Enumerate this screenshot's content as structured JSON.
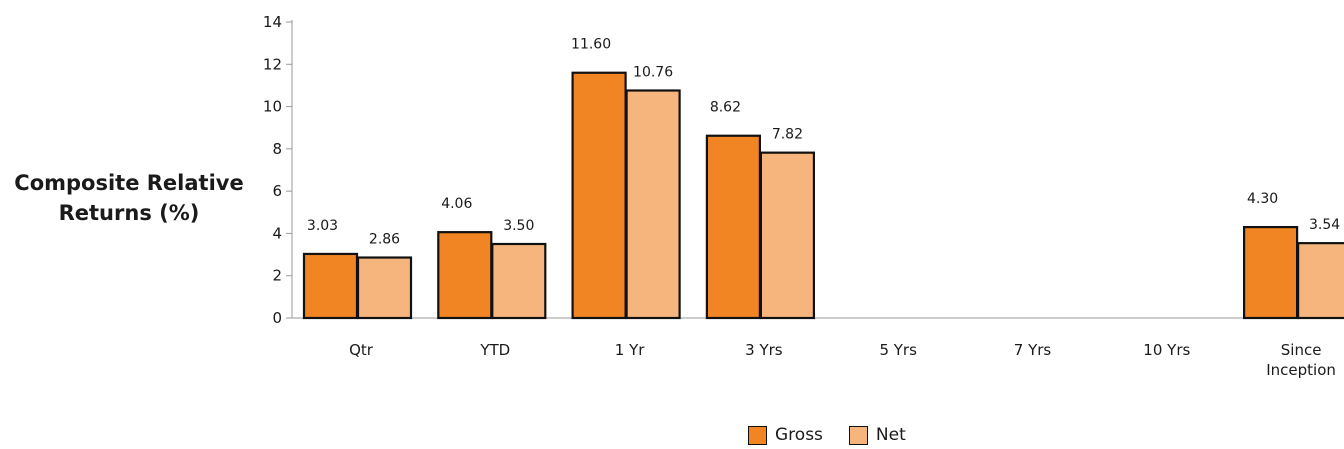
{
  "chart_data": {
    "type": "bar",
    "ylabel_lines": [
      "Composite Relative",
      "Returns (%)"
    ],
    "categories": [
      [
        "Qtr"
      ],
      [
        "YTD"
      ],
      [
        "1 Yr"
      ],
      [
        "3 Yrs"
      ],
      [
        "5 Yrs"
      ],
      [
        "7 Yrs"
      ],
      [
        "10 Yrs"
      ],
      [
        "Since",
        "Inception"
      ]
    ],
    "series": [
      {
        "name": "Gross",
        "color": "#F28523",
        "values": [
          3.03,
          4.06,
          11.6,
          8.62,
          null,
          null,
          null,
          4.3
        ],
        "labels": [
          "3.03",
          "4.06",
          "11.60",
          "8.62",
          "",
          "",
          "",
          "4.30"
        ]
      },
      {
        "name": "Net",
        "color": "#F7B57E",
        "values": [
          2.86,
          3.5,
          10.76,
          7.82,
          null,
          null,
          null,
          3.54
        ],
        "labels": [
          "2.86",
          "3.50",
          "10.76",
          "7.82",
          "",
          "",
          "",
          "3.54"
        ]
      }
    ],
    "ylim": [
      0,
      14
    ],
    "yticks": [
      0,
      2,
      4,
      6,
      8,
      10,
      12,
      14
    ],
    "grid": false,
    "legend_position": "bottom"
  }
}
